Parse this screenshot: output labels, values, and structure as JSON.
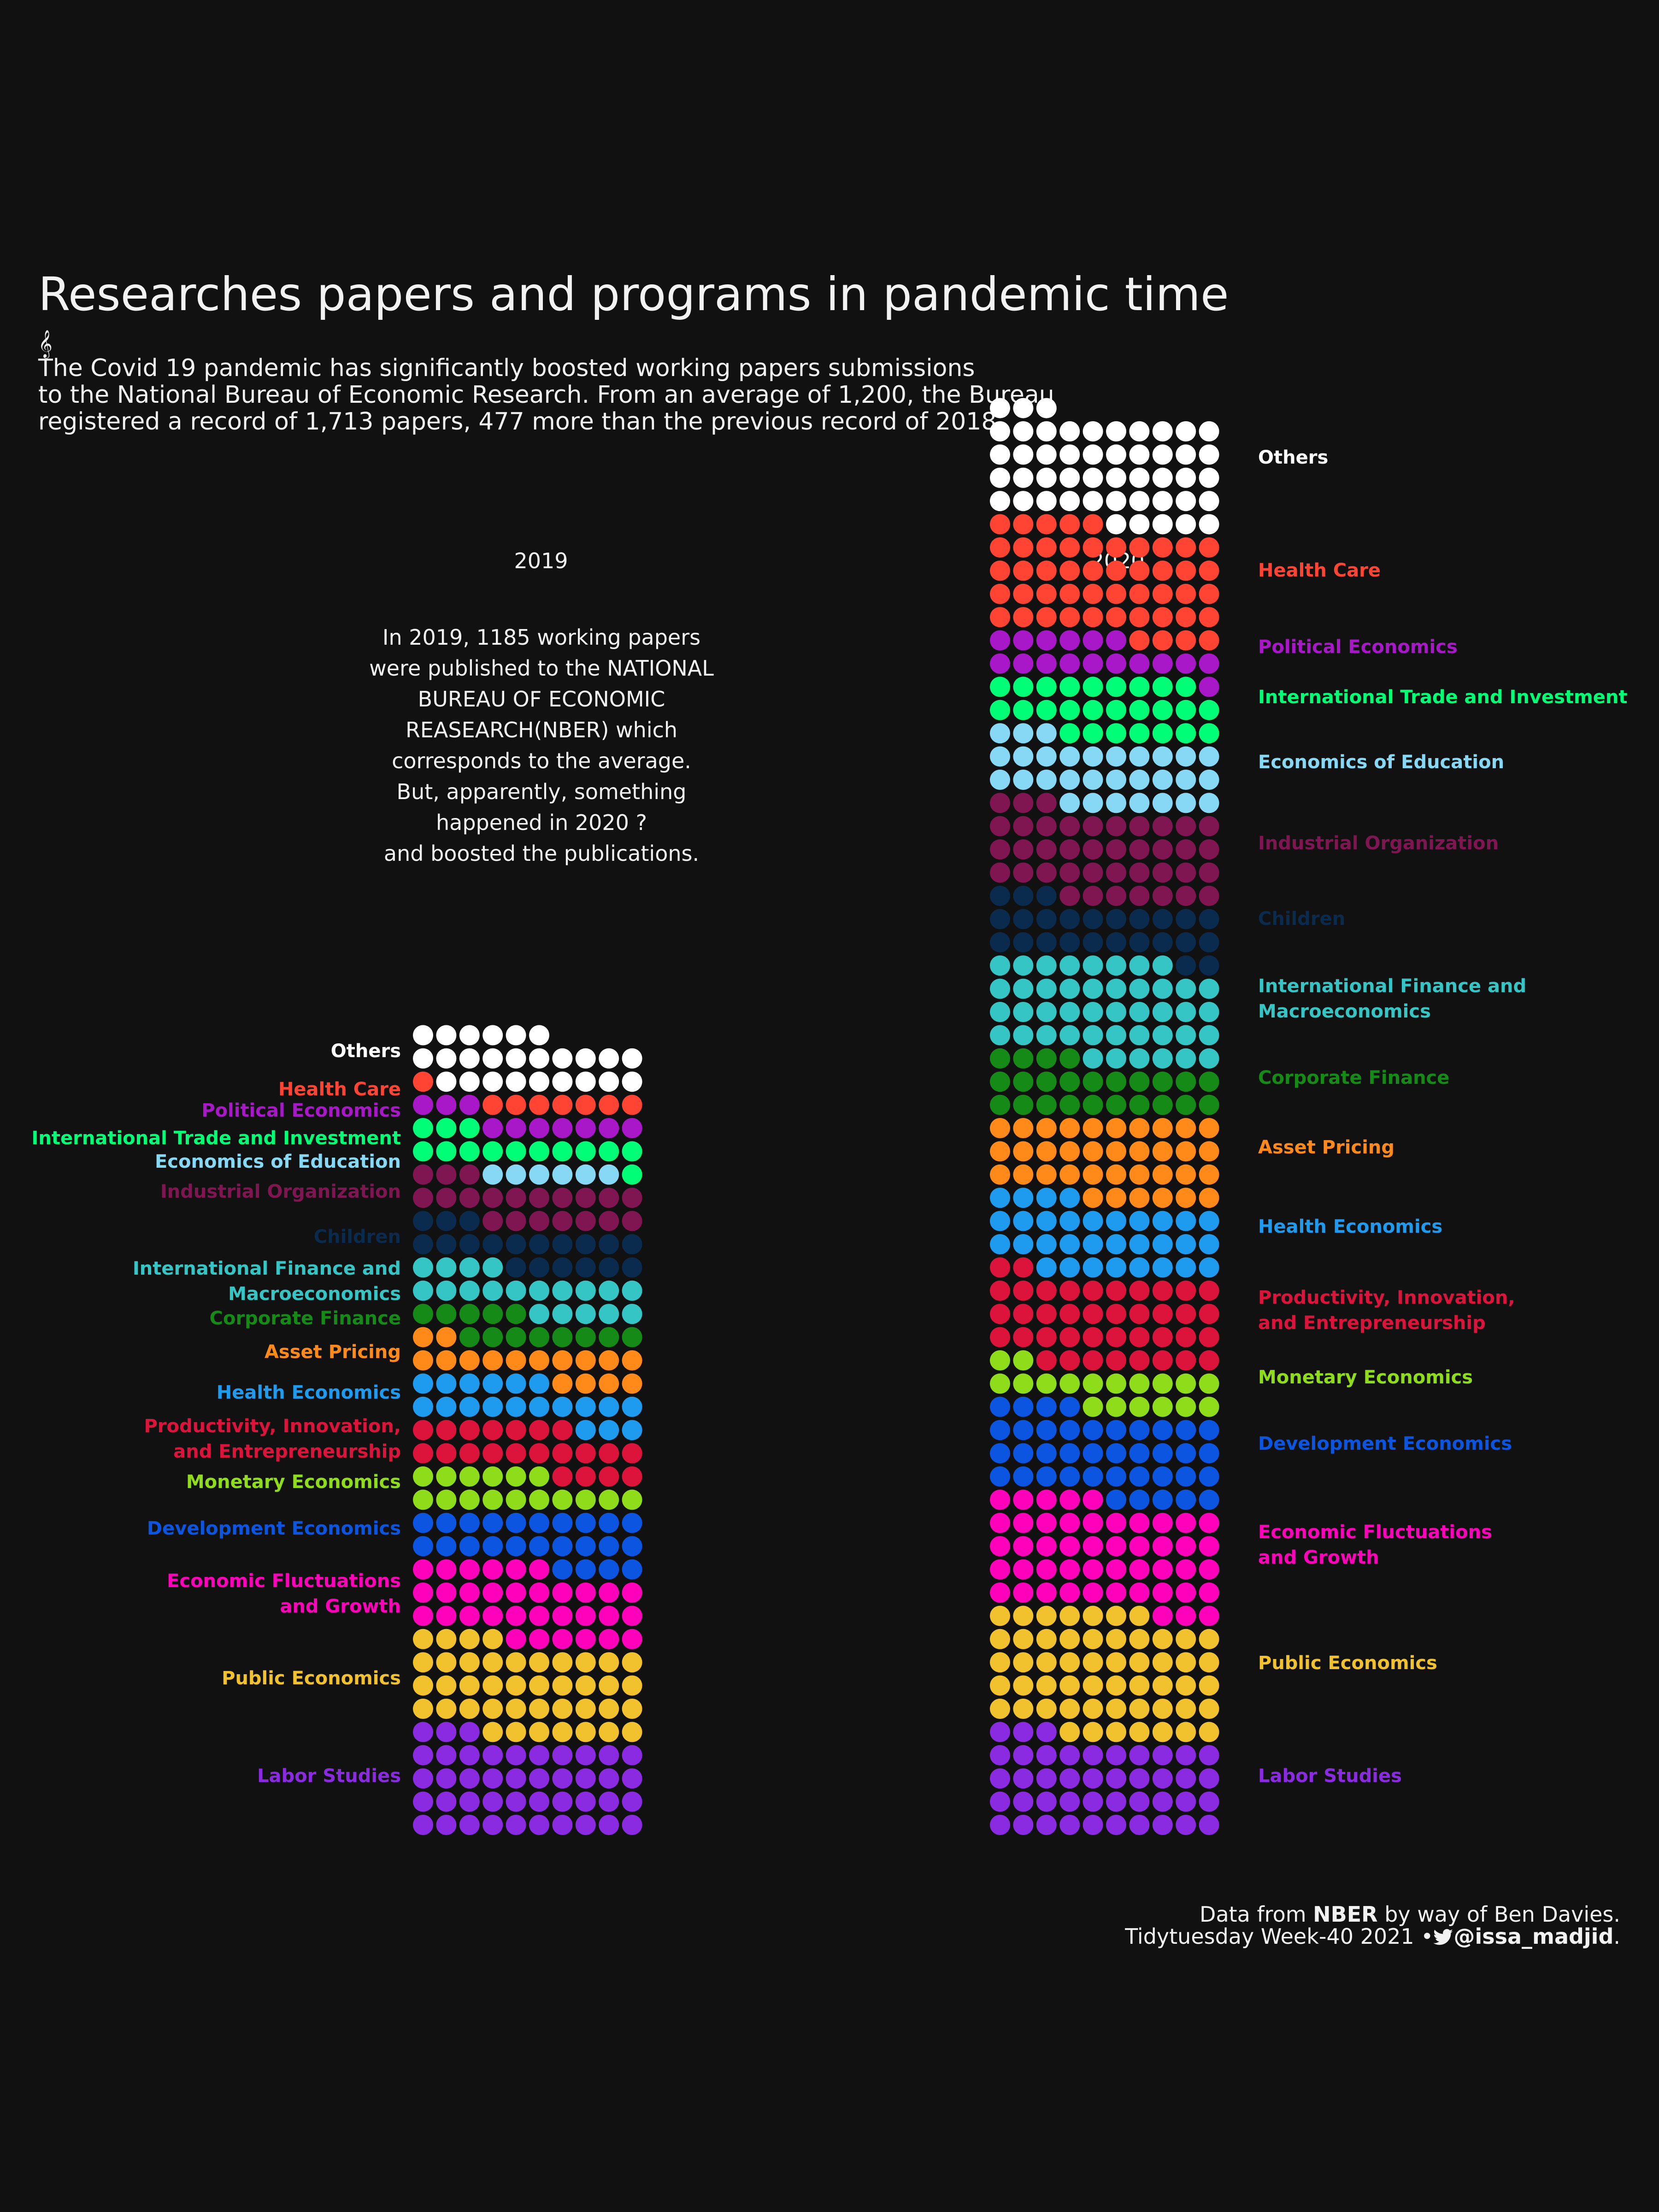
{
  "title": "Researches papers and programs in pandemic time",
  "glyph": "𝄞",
  "subtitle_lines": [
    "The Covid 19 pandemic has significantly boosted working papers submissions",
    "to the National Bureau of Economic Research. From an average of 1,200, the Bureau",
    "registered a record of 1,713 papers, 477 more than the previous record of 2018."
  ],
  "annotation_lines": [
    "In 2019, 1185 working papers",
    "were published to the NATIONAL",
    "BUREAU OF ECONOMIC",
    "REASEARCH(NBER) which",
    "corresponds to the average.",
    "But, apparently, something",
    "happened in 2020 ?",
    "and boosted the publications."
  ],
  "caption": {
    "line1_prefix": "Data from ",
    "line1_bold": "NBER",
    "line1_suffix": " by way of Ben Davies.",
    "line2_prefix": "Tidytuesday Week-40 2021 •",
    "line2_bold": "@issa_madjid",
    "line2_suffix": "."
  },
  "icons": {
    "caption_icon": "twitter-bird-icon"
  },
  "chart_data": {
    "type": "waffle",
    "unit": "1 dot ≈ 10 papers",
    "rows_per_column": 10,
    "stack_order": "Labor Studies at the bottom, Others at the top",
    "categories": [
      "Labor Studies",
      "Public Economics",
      "Economic Fluctuations and Growth",
      "Development Economics",
      "Monetary Economics",
      "Productivity, Innovation, and Entrepreneurship",
      "Health Economics",
      "Asset Pricing",
      "Corporate Finance",
      "International Finance and Macroeconomics",
      "Children",
      "Industrial Organization",
      "Economics of Education",
      "International Trade and Investment",
      "Political Economics",
      "Health Care",
      "Others"
    ],
    "colors": {
      "Labor Studies": "#8a2be2",
      "Public Economics": "#f2c12e",
      "Economic Fluctuations and Growth": "#ff00bb",
      "Development Economics": "#0b55e0",
      "Monetary Economics": "#8fdc1a",
      "Productivity, Innovation, and Entrepreneurship": "#dc143c",
      "Health Economics": "#1e9bef",
      "Asset Pricing": "#ff8a1a",
      "Corporate Finance": "#168a16",
      "International Finance and Macroeconomics": "#36c5c5",
      "Children": "#0a2a4e",
      "Industrial Organization": "#7f1651",
      "Economics of Education": "#87d8f5",
      "International Trade and Investment": "#00ff77",
      "Political Economics": "#a818c8",
      "Health Care": "#ff4433",
      "Others": "#ffffff"
    },
    "series": [
      {
        "name": "2019",
        "values": [
          43,
          41,
          32,
          24,
          16,
          21,
          19,
          16,
          13,
          19,
          19,
          20,
          6,
          14,
          10,
          8,
          25
        ]
      },
      {
        "name": "2020",
        "values": [
          43,
          54,
          48,
          39,
          18,
          40,
          32,
          36,
          24,
          44,
          25,
          40,
          30,
          26,
          17,
          49,
          48
        ]
      }
    ],
    "labels_2019": [
      "Labor Studies",
      "Public Economics",
      "Economic Fluctuations|and Growth",
      "Development Economics",
      "Monetary Economics",
      "Productivity, Innovation,|and Entrepreneurship",
      "Health Economics",
      "Asset Pricing",
      "Corporate Finance",
      "International Finance and |Macroeconomics",
      "Children",
      "Industrial Organization",
      "Economics of Education",
      "International Trade and Investment",
      "Political Economics",
      "Health Care",
      "Others"
    ],
    "labels_2020": [
      "Labor Studies",
      "Public Economics",
      "Economic Fluctuations|and Growth",
      "Development Economics",
      "Monetary Economics",
      "Productivity, Innovation,| and Entrepreneurship",
      "Health Economics",
      "Asset Pricing",
      "Corporate Finance",
      "International Finance and|Macroeconomics",
      "Children",
      "Industrial Organization",
      "Economics of Education",
      "International Trade and Investment",
      "Political Economics",
      "Health Care",
      "Others"
    ],
    "x_labels": [
      "2019",
      "2020"
    ]
  }
}
